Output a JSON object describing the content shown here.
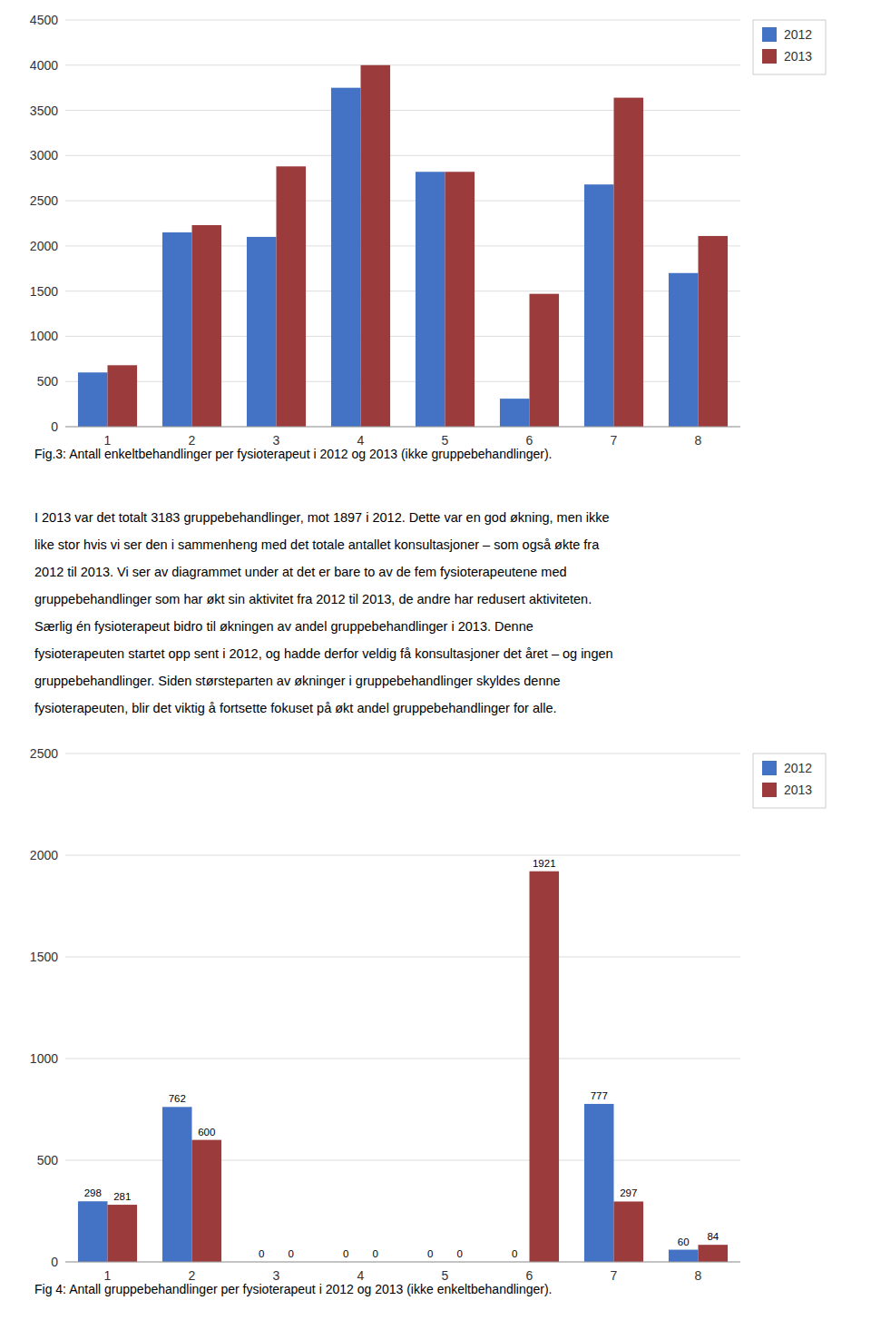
{
  "chart_data": [
    {
      "type": "bar",
      "title": "Fig.3: Antall enkeltbehandlinger per fysioterapeut i 2012 og 2013 (ikke gruppebehandlinger).",
      "categories": [
        1,
        2,
        3,
        4,
        5,
        6,
        7,
        8
      ],
      "series": [
        {
          "name": "2012",
          "color": "#4472C4",
          "values": [
            600,
            2150,
            2100,
            3750,
            2820,
            310,
            2680,
            1700
          ]
        },
        {
          "name": "2013",
          "color": "#9B3B3B",
          "values": [
            680,
            2230,
            2880,
            4000,
            2820,
            1470,
            3640,
            2110
          ]
        }
      ],
      "ylim": [
        0,
        4500
      ],
      "yticks": [
        0,
        500,
        1000,
        1500,
        2000,
        2500,
        3000,
        3500,
        4000,
        4500
      ],
      "grid": true,
      "legend": "upper right"
    },
    {
      "type": "bar",
      "title": "Fig 4: Antall gruppebehandlinger per fysioterapeut i 2012 og 2013 (ikke enkeltbehandlinger).",
      "categories": [
        1,
        2,
        3,
        4,
        5,
        6,
        7,
        8
      ],
      "series": [
        {
          "name": "2012",
          "color": "#4472C4",
          "values": [
            298,
            762,
            0,
            0,
            0,
            0,
            777,
            60
          ]
        },
        {
          "name": "2013",
          "color": "#9B3B3B",
          "values": [
            281,
            600,
            0,
            0,
            0,
            1921,
            297,
            84
          ]
        }
      ],
      "ylim": [
        0,
        2500
      ],
      "yticks": [
        0,
        500,
        1000,
        1500,
        2000,
        2500
      ],
      "grid": true,
      "legend": "upper right",
      "data_labels": true
    }
  ],
  "paragraph": [
    "I 2013 var det totalt 3183 gruppebehandlinger, mot 1897 i 2012. Dette var en god økning, men ikke",
    "like stor hvis vi ser den i sammenheng med det totale antallet konsultasjoner – som også økte fra",
    "2012 til 2013. Vi ser av diagrammet under at det er bare to av de fem fysioterapeutene med",
    "gruppebehandlinger som har økt sin aktivitet fra 2012 til 2013, de andre har redusert aktiviteten.",
    "Særlig én fysioterapeut bidro til økningen av andel gruppebehandlinger i 2013. Denne",
    "fysioterapeuten startet opp sent i 2012, og hadde derfor veldig få konsultasjoner det året – og ingen",
    "gruppebehandlinger. Siden størsteparten av økninger i gruppebehandlinger skyldes denne",
    "fysioterapeuten, blir det viktig å fortsette fokuset på økt andel gruppebehandlinger for alle."
  ]
}
